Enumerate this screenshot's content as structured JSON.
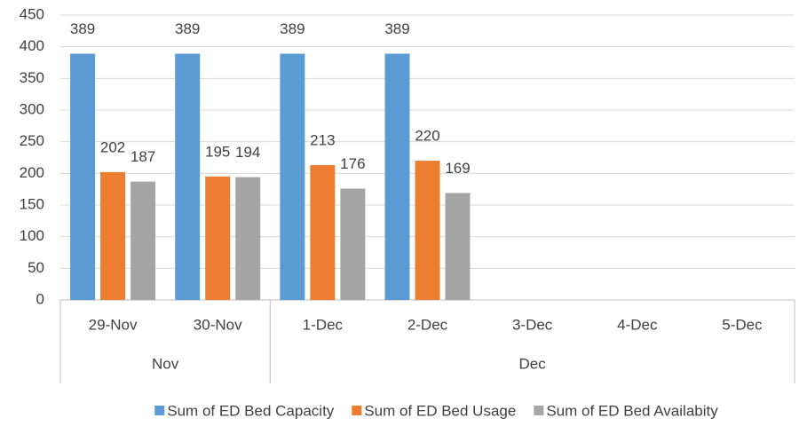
{
  "chart_data": {
    "type": "bar",
    "groups": [
      {
        "name": "Nov",
        "categories": [
          "29-Nov",
          "30-Nov"
        ]
      },
      {
        "name": "Dec",
        "categories": [
          "1-Dec",
          "2-Dec",
          "3-Dec",
          "4-Dec",
          "5-Dec"
        ]
      }
    ],
    "series": [
      {
        "name": "Sum of ED Bed Capacity",
        "color": "#5b9bd5",
        "values": [
          389,
          389,
          389,
          389,
          null,
          null,
          null
        ]
      },
      {
        "name": "Sum of ED Bed Usage",
        "color": "#ed7d31",
        "values": [
          202,
          195,
          213,
          220,
          null,
          null,
          null
        ]
      },
      {
        "name": "Sum of ED Bed Availabity",
        "color": "#a5a5a5",
        "values": [
          187,
          194,
          176,
          169,
          null,
          null,
          null
        ]
      }
    ],
    "ylim": [
      0,
      450
    ],
    "yticks": [
      0,
      50,
      100,
      150,
      200,
      250,
      300,
      350,
      400,
      450
    ],
    "grid": true,
    "legend": "bottom",
    "data_labels": true
  }
}
